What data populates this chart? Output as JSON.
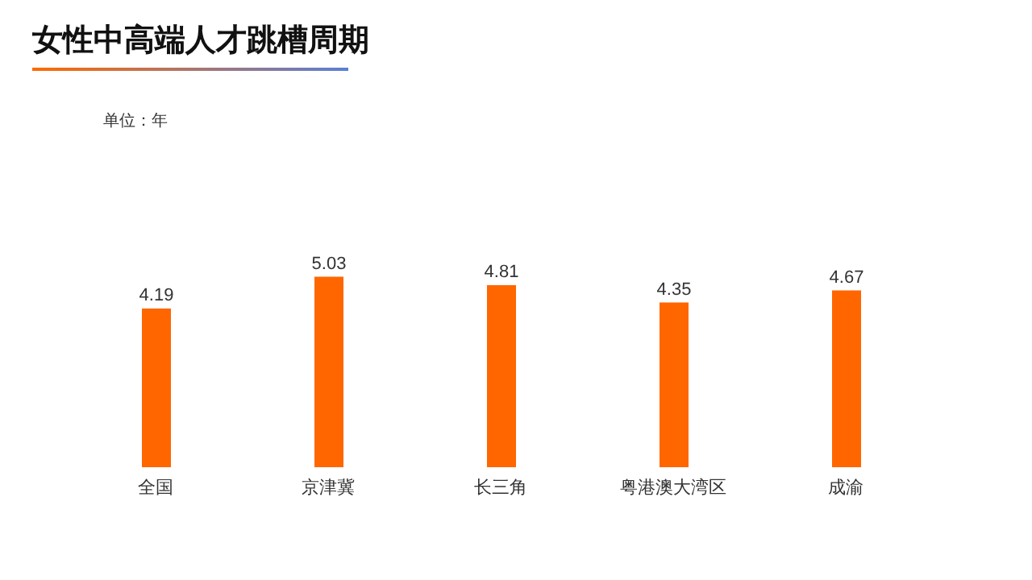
{
  "chart_data": {
    "type": "bar",
    "title": "女性中高端人才跳槽周期",
    "annotations": [
      "单位：年"
    ],
    "categories": [
      "全国",
      "京津冀",
      "长三角",
      "粤港澳大湾区",
      "成渝"
    ],
    "values": [
      4.19,
      5.03,
      4.81,
      4.35,
      4.67
    ],
    "color": "#ff6600",
    "data_labels": true
  }
}
